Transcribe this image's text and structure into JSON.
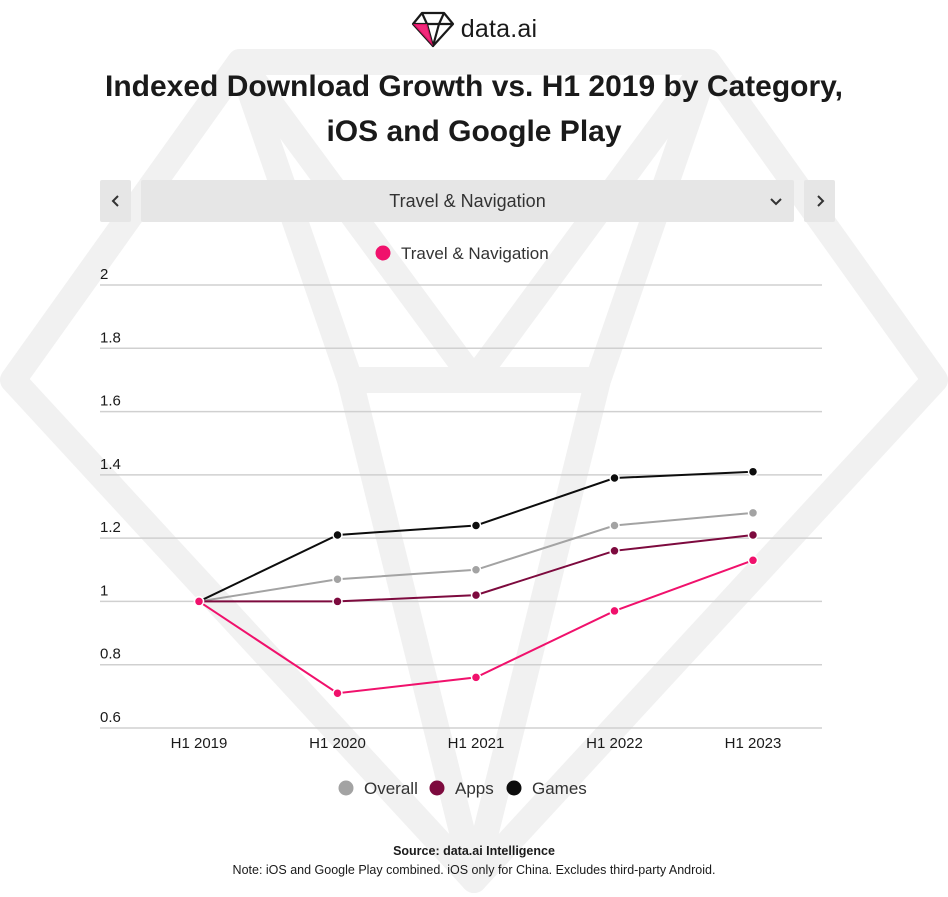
{
  "logo": {
    "text": "data.ai"
  },
  "title": {
    "line1": "Indexed Download Growth vs. H1 2019 by Category,",
    "line2": "iOS and Google Play"
  },
  "selector": {
    "prev_label": "previous",
    "next_label": "next",
    "selected": "Travel & Navigation"
  },
  "colors": {
    "highlight": "#f0116c",
    "overall": "#a3a3a3",
    "apps": "#7d0a3e",
    "games": "#0d0d0d",
    "grid": "#d0d0d0",
    "control_bg": "#e6e6e6"
  },
  "chart_data": {
    "type": "line",
    "categories": [
      "H1 2019",
      "H1 2020",
      "H1 2021",
      "H1 2022",
      "H1 2023"
    ],
    "ylim": [
      0.6,
      2
    ],
    "yticks": [
      "2",
      "1.8",
      "1.6",
      "1.4",
      "1.2",
      "1",
      "0.8",
      "0.6"
    ],
    "xlabel": "",
    "ylabel": "",
    "grid": true,
    "top_legend": [
      "Travel & Navigation"
    ],
    "bottom_legend": [
      "Overall",
      "Apps",
      "Games"
    ],
    "series": [
      {
        "name": "Games",
        "color": "#0d0d0d",
        "values": [
          1.0,
          1.21,
          1.24,
          1.39,
          1.41
        ]
      },
      {
        "name": "Overall",
        "color": "#a3a3a3",
        "values": [
          1.0,
          1.07,
          1.1,
          1.24,
          1.28
        ]
      },
      {
        "name": "Apps",
        "color": "#7d0a3e",
        "values": [
          1.0,
          1.0,
          1.02,
          1.16,
          1.21
        ]
      },
      {
        "name": "Travel & Navigation",
        "color": "#f0116c",
        "values": [
          1.0,
          0.71,
          0.76,
          0.97,
          1.13
        ]
      }
    ]
  },
  "footer": {
    "source": "Source: data.ai Intelligence",
    "note": "Note: iOS and Google Play combined. iOS only for China. Excludes third-party Android."
  }
}
